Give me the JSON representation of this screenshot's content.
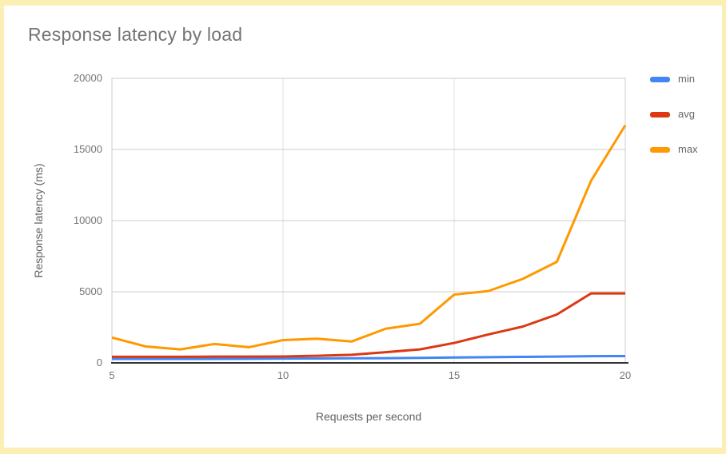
{
  "frame": {
    "border_color": "#FBEFB4",
    "background": "#FFFFFF"
  },
  "title": "Response latency by load",
  "chart_data": {
    "type": "line",
    "title": "Response latency by load",
    "xlabel": "Requests per second",
    "ylabel": "Response latency (ms)",
    "x": [
      5,
      6,
      7,
      8,
      9,
      10,
      11,
      12,
      13,
      14,
      15,
      16,
      17,
      18,
      19,
      20
    ],
    "series": [
      {
        "name": "min",
        "color": "#4285F4",
        "values": [
          280,
          280,
          280,
          280,
          290,
          300,
          310,
          320,
          330,
          350,
          380,
          400,
          420,
          440,
          470,
          480
        ]
      },
      {
        "name": "avg",
        "color": "#DC3912",
        "values": [
          430,
          430,
          430,
          440,
          440,
          450,
          500,
          570,
          750,
          950,
          1400,
          2000,
          2550,
          3400,
          4880,
          4880
        ]
      },
      {
        "name": "max",
        "color": "#FF9900",
        "values": [
          1780,
          1150,
          950,
          1330,
          1100,
          1600,
          1700,
          1500,
          2400,
          2750,
          4800,
          5050,
          5900,
          7100,
          12800,
          16700
        ]
      }
    ],
    "xlim": [
      5,
      20
    ],
    "ylim": [
      0,
      20000
    ],
    "xticks": {
      "values": [
        5,
        10,
        15,
        20
      ],
      "labels": [
        "5",
        "10",
        "15",
        "20"
      ]
    },
    "yticks": {
      "values": [
        0,
        5000,
        10000,
        15000,
        20000
      ],
      "labels": [
        "0",
        "5000",
        "10000",
        "15000",
        "20000"
      ]
    },
    "grid": true,
    "legend_position": "right"
  },
  "colors": {
    "grid_horizontal": "#CCCCCC",
    "grid_vertical": "#E0E0E0",
    "plot_border": "#CCCCCC",
    "axis_line": "#333333",
    "tick_text": "#757575",
    "axis_title_text": "#616161",
    "title_text": "#757575",
    "legend_text": "#666666"
  }
}
